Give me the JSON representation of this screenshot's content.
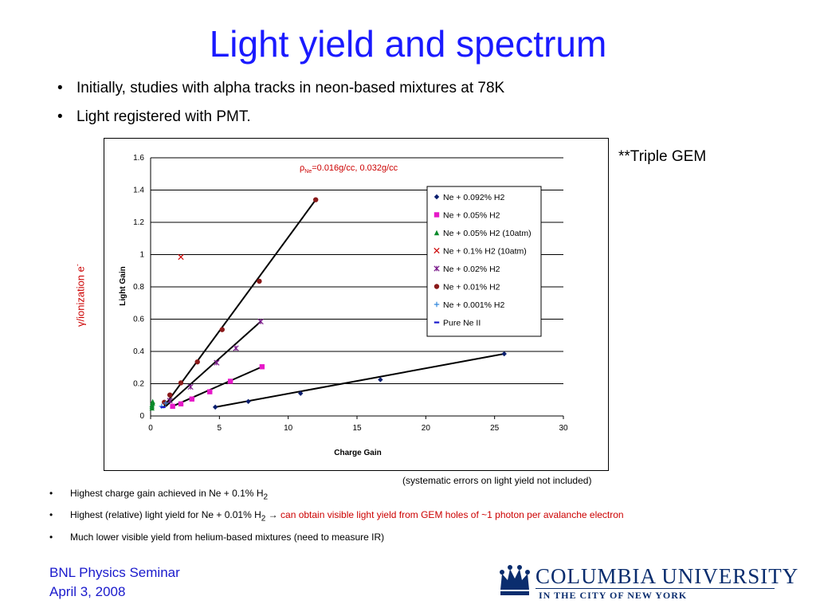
{
  "slide": {
    "title": "Light yield and spectrum",
    "bullets": [
      "Initially, studies with alpha tracks in neon-based mixtures at 78K",
      "Light registered with PMT."
    ],
    "note": "**Triple GEM",
    "side_label": "γ/ionization e",
    "side_label_sup": "-",
    "caption": "(systematic errors on light yield not included)",
    "notes": {
      "n1_text": "Highest charge gain achieved in Ne + 0.1% H",
      "n1_sub": "2",
      "n2_text": "Highest (relative) light yield for Ne + 0.01% H",
      "n2_sub": "2",
      "n2_arrow": " → ",
      "n2_red": "can obtain visible light yield from GEM holes of ~1 photon per avalanche electron",
      "n3_text": "Much lower visible yield from helium-based mixtures (need to measure IR)"
    },
    "footer_line1": "BNL Physics Seminar",
    "footer_line2": "April 3, 2008",
    "logo_text": "COLUMBIA UNIVERSITY",
    "logo_sub": "IN THE CITY OF NEW YORK"
  },
  "chart_data": {
    "type": "scatter",
    "xlabel": "Charge Gain",
    "ylabel": "Light Gain",
    "xlim": [
      0,
      30
    ],
    "ylim": [
      0,
      1.6
    ],
    "xticks": [
      0,
      5,
      10,
      15,
      20,
      25,
      30
    ],
    "yticks": [
      0,
      0.2,
      0.4,
      0.6,
      0.8,
      1,
      1.2,
      1.4,
      1.6
    ],
    "ytick_labels": [
      "0",
      "0.2",
      "0.4",
      "0.6",
      "0.8",
      "1",
      "1.2",
      "1.4",
      "1.6"
    ],
    "grid": "horizontal",
    "legend": "top-right",
    "annotation": {
      "rho": "ρ",
      "sub": "Ne",
      "text": "=0.016g/cc, 0.032g/cc",
      "color": "#cc0000"
    },
    "series": [
      {
        "name": "Ne + 0.092% H2",
        "marker": "diamond",
        "color": "#0a1e6e",
        "points": [
          [
            4.7,
            0.055
          ],
          [
            7.1,
            0.09
          ],
          [
            10.9,
            0.14
          ],
          [
            16.7,
            0.225
          ],
          [
            25.7,
            0.385
          ]
        ],
        "fit": [
          [
            4.7,
            0.055
          ],
          [
            25.7,
            0.385
          ]
        ]
      },
      {
        "name": "Ne + 0.05% H2",
        "marker": "square",
        "color": "#e619c8",
        "points": [
          [
            1.6,
            0.06
          ],
          [
            2.2,
            0.075
          ],
          [
            3.0,
            0.105
          ],
          [
            4.3,
            0.15
          ],
          [
            5.8,
            0.215
          ],
          [
            8.1,
            0.305
          ]
        ],
        "fit": [
          [
            1.6,
            0.06
          ],
          [
            8.1,
            0.305
          ]
        ]
      },
      {
        "name": "Ne + 0.05% H2 (10atm)",
        "marker": "triangle",
        "color": "#0a8a2a",
        "points": [
          [
            0.1,
            0.05
          ],
          [
            0.1,
            0.06
          ],
          [
            0.1,
            0.07
          ],
          [
            0.15,
            0.08
          ],
          [
            0.15,
            0.09
          ]
        ],
        "fit": []
      },
      {
        "name": "Ne + 0.1% H2 (10atm)",
        "marker": "x",
        "color": "#cc0000",
        "points": [
          [
            2.2,
            0.985
          ]
        ],
        "fit": []
      },
      {
        "name": "Ne + 0.02% H2",
        "marker": "star",
        "color": "#7a1a8a",
        "points": [
          [
            1.4,
            0.095
          ],
          [
            2.9,
            0.18
          ],
          [
            4.8,
            0.33
          ],
          [
            6.2,
            0.42
          ],
          [
            8.0,
            0.585
          ]
        ],
        "fit": [
          [
            1.1,
            0.06
          ],
          [
            8.0,
            0.585
          ]
        ]
      },
      {
        "name": "Ne + 0.01% H2",
        "marker": "circle",
        "color": "#8a1a1a",
        "points": [
          [
            1.0,
            0.085
          ],
          [
            1.4,
            0.13
          ],
          [
            2.2,
            0.205
          ],
          [
            3.4,
            0.335
          ],
          [
            5.2,
            0.535
          ],
          [
            7.9,
            0.835
          ],
          [
            12.0,
            1.34
          ]
        ],
        "fit": [
          [
            0.9,
            0.05
          ],
          [
            12.0,
            1.34
          ]
        ]
      },
      {
        "name": "Ne + 0.001% H2",
        "marker": "plus",
        "color": "#3388dd",
        "points": [
          [
            0.8,
            0.06
          ],
          [
            1.1,
            0.08
          ]
        ],
        "fit": []
      },
      {
        "name": "Pure Ne II",
        "marker": "dash",
        "color": "#1a1acc",
        "points": [
          [
            0.9,
            0.055
          ]
        ],
        "fit": []
      }
    ]
  }
}
